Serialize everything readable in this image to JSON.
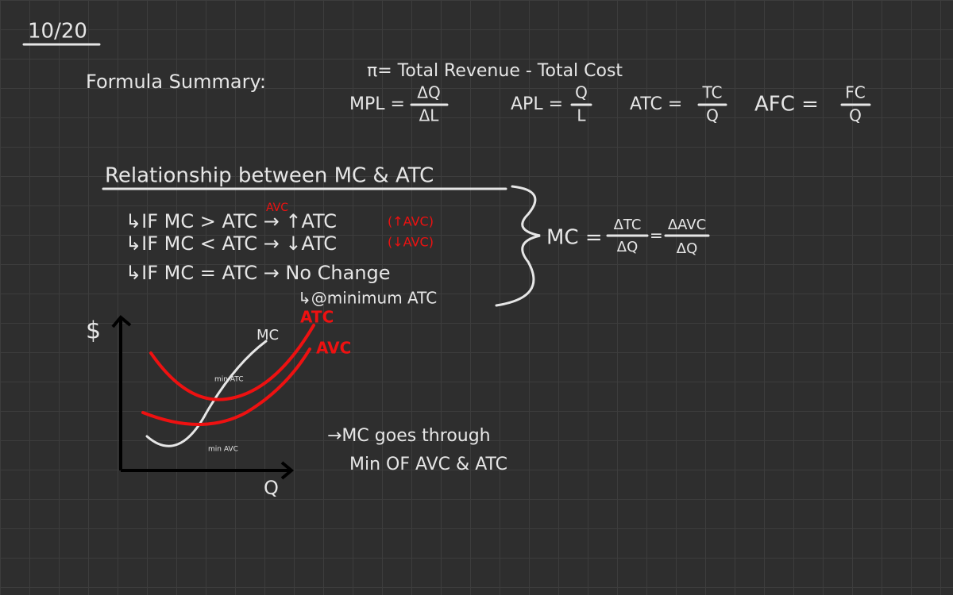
{
  "date": "10/20",
  "formula_summary": {
    "label": "Formula Summary:",
    "profit": "π= Total Revenue - Total Cost",
    "fractions": [
      {
        "lhs": "MPL =",
        "num": "ΔQ",
        "den": "ΔL"
      },
      {
        "lhs": "APL =",
        "num": "Q",
        "den": "L"
      },
      {
        "lhs": "ATC =",
        "num": "TC",
        "den": "Q"
      },
      {
        "lhs": "AFC =",
        "num": "FC",
        "den": "Q"
      }
    ]
  },
  "relationship": {
    "title": "Relationship between MC & ATC",
    "annotation": "AVC",
    "rules": [
      {
        "text": "↳IF MC > ATC → ↑ATC",
        "note": "(↑AVC)"
      },
      {
        "text": "↳IF MC < ATC → ↓ATC",
        "note": "(↓AVC)"
      },
      {
        "text": "↳IF MC = ATC → No Change"
      }
    ],
    "sub": "↳@minimum ATC",
    "mc_formula": {
      "lhs": "MC =",
      "num1": "ΔTC",
      "den1": "ΔQ",
      "eq": "=",
      "num2": "ΔAVC",
      "den2": "ΔQ"
    }
  },
  "graph": {
    "y_label": "$",
    "x_label": "Q",
    "mc": "MC",
    "atc": "ATC",
    "avc": "AVC",
    "min_atc": "min ATC",
    "min_avc": "min AVC"
  },
  "note": [
    "→MC goes through",
    "Min OF AVC & ATC"
  ]
}
